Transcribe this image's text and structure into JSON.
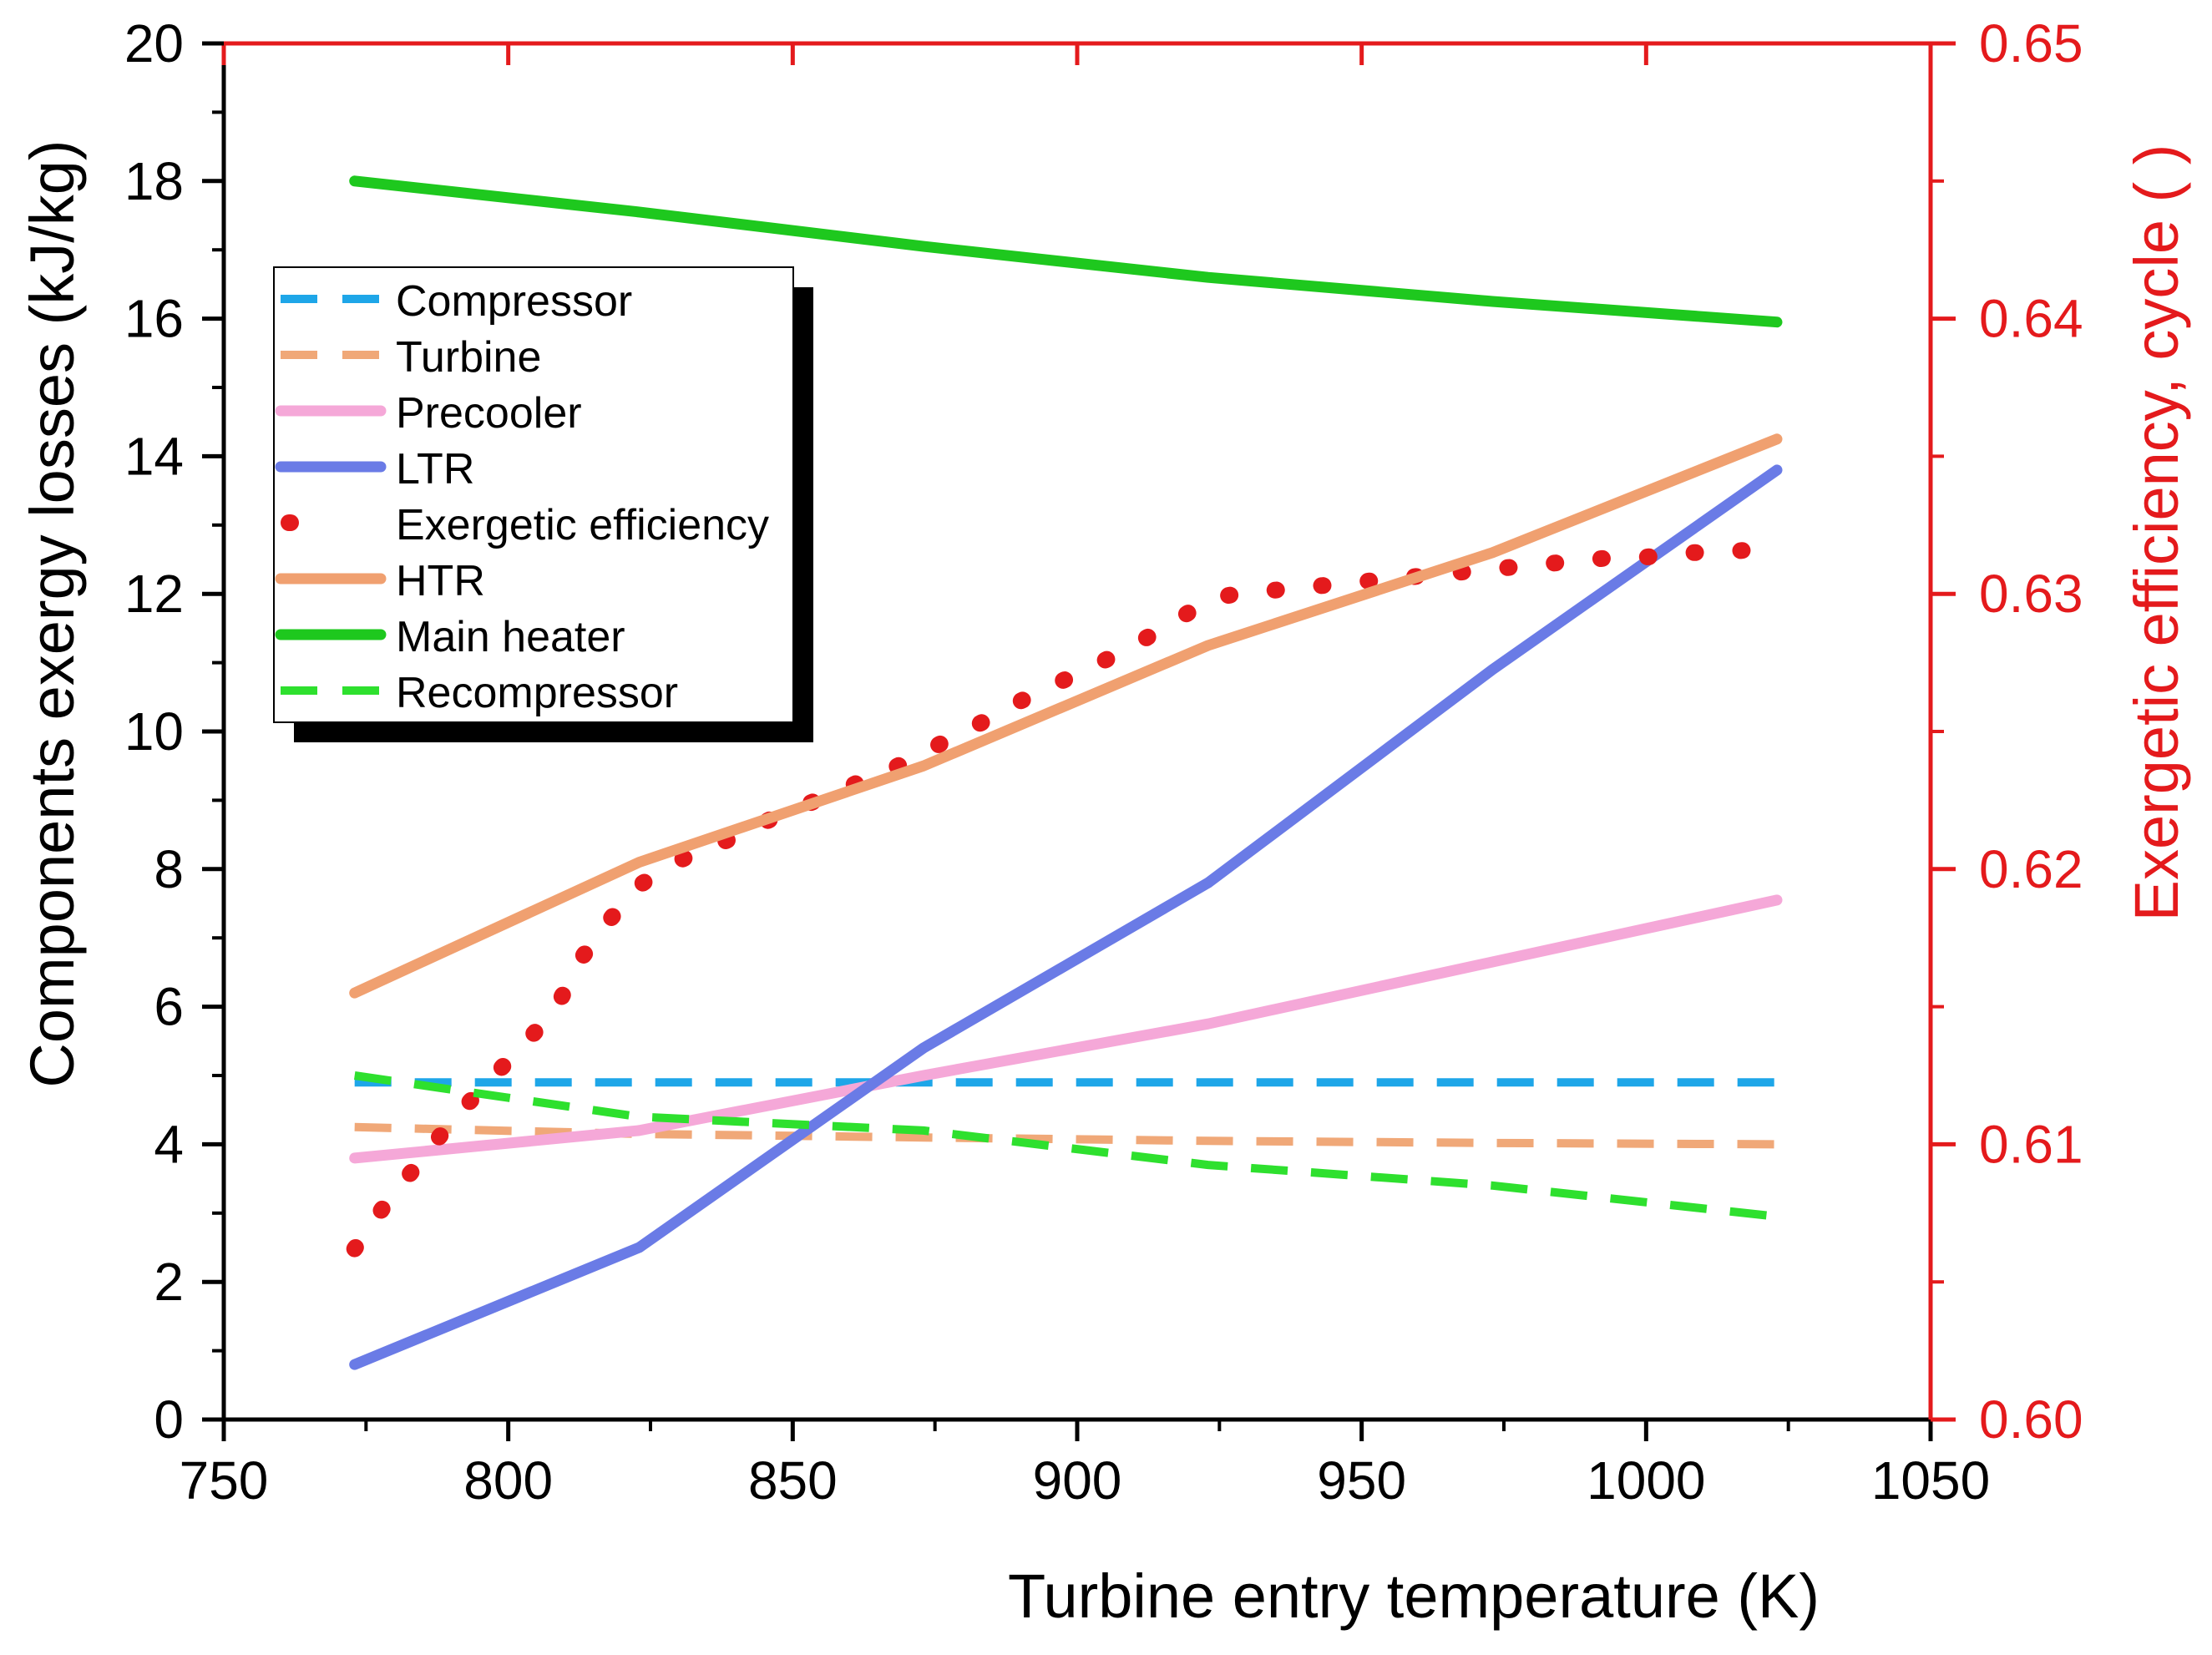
{
  "chart_data": {
    "type": "line",
    "title": "",
    "xlabel": "Turbine entry temperature (K)",
    "ylabel": "Components exergy losses (kJ/kg)",
    "y2label": "Exergetic efficiency, cycle ( )",
    "xlim": [
      750,
      1050
    ],
    "ylim": [
      0,
      20
    ],
    "y2lim": [
      0.6,
      0.65
    ],
    "xticks": [
      "750",
      "800",
      "850",
      "900",
      "950",
      "1000",
      "1050"
    ],
    "yticks": [
      "0",
      "2",
      "4",
      "6",
      "8",
      "10",
      "12",
      "14",
      "16",
      "18",
      "20"
    ],
    "y2ticks": [
      "0.60",
      "0.61",
      "0.62",
      "0.63",
      "0.64",
      "0.65"
    ],
    "legend_position": "upper-left",
    "colors": {
      "right_axis": "#e41a1c",
      "left_axis": "#000000"
    },
    "series": [
      {
        "name": "Compressor",
        "axis": "left",
        "style": "dashed",
        "color": "#1ea6e8",
        "x": [
          773,
          823,
          873,
          923,
          973,
          1023
        ],
        "values": [
          4.9,
          4.9,
          4.9,
          4.9,
          4.9,
          4.9
        ]
      },
      {
        "name": "Turbine",
        "axis": "left",
        "style": "dashed",
        "color": "#f0a878",
        "x": [
          773,
          823,
          873,
          923,
          973,
          1023
        ],
        "values": [
          4.25,
          4.15,
          4.1,
          4.05,
          4.02,
          4.0
        ]
      },
      {
        "name": "Precooler",
        "axis": "left",
        "style": "solid",
        "color": "#f5a8d8",
        "x": [
          773,
          823,
          873,
          923,
          973,
          1023
        ],
        "values": [
          3.8,
          4.2,
          5.0,
          5.75,
          6.65,
          7.55
        ]
      },
      {
        "name": "LTR",
        "axis": "left",
        "style": "solid",
        "color": "#6a7be6",
        "x": [
          773,
          823,
          873,
          923,
          973,
          1023
        ],
        "values": [
          0.8,
          2.5,
          5.4,
          7.8,
          10.9,
          13.8
        ]
      },
      {
        "name": "Exergetic efficiency",
        "axis": "right",
        "style": "dotted",
        "color": "#e41a1c",
        "x": [
          773,
          778,
          783,
          788,
          793,
          798,
          803,
          808,
          813,
          818,
          823,
          828,
          833,
          838,
          843,
          848,
          853,
          858,
          863,
          868,
          873,
          878,
          883,
          888,
          893,
          898,
          903,
          908,
          913,
          918,
          923,
          928,
          933,
          938,
          943,
          948,
          953,
          958,
          963,
          968,
          973,
          978,
          983,
          988,
          993,
          998,
          1003,
          1008,
          1013,
          1018,
          1023
        ],
        "values": [
          0.6062,
          0.6077,
          0.609,
          0.6103,
          0.6115,
          0.6126,
          0.6137,
          0.6148,
          0.6168,
          0.6182,
          0.6194,
          0.6201,
          0.6206,
          0.621,
          0.6215,
          0.622,
          0.6224,
          0.6228,
          0.6233,
          0.6237,
          0.6242,
          0.6248,
          0.6253,
          0.6259,
          0.6264,
          0.6269,
          0.6274,
          0.6279,
          0.6285,
          0.6291,
          0.6298,
          0.63,
          0.6301,
          0.6302,
          0.6303,
          0.6304,
          0.6305,
          0.6306,
          0.6307,
          0.6308,
          0.6309,
          0.631,
          0.6311,
          0.6312,
          0.6313,
          0.6313,
          0.6314,
          0.6315,
          0.6315,
          0.6316,
          0.6317
        ]
      },
      {
        "name": "HTR",
        "axis": "left",
        "style": "solid",
        "color": "#f0a070",
        "x": [
          773,
          823,
          873,
          923,
          973,
          1023
        ],
        "values": [
          6.2,
          8.1,
          9.5,
          11.25,
          12.6,
          14.25
        ]
      },
      {
        "name": "Main heater",
        "axis": "left",
        "style": "solid",
        "color": "#1ec81e",
        "x": [
          773,
          823,
          873,
          923,
          973,
          1023
        ],
        "values": [
          18.0,
          17.55,
          17.05,
          16.6,
          16.25,
          15.95
        ]
      },
      {
        "name": "Recompressor",
        "axis": "left",
        "style": "dashed",
        "color": "#2ee02e",
        "x": [
          773,
          823,
          873,
          923,
          973,
          1023
        ],
        "values": [
          5.0,
          4.4,
          4.2,
          3.7,
          3.4,
          2.95
        ]
      }
    ]
  }
}
